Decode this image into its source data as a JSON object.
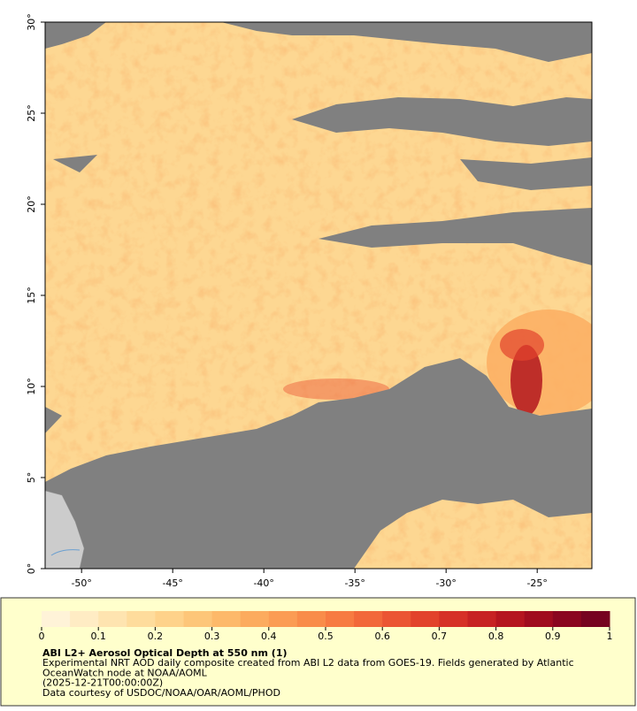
{
  "map": {
    "xlim": [
      -52,
      -22
    ],
    "ylim": [
      0,
      30
    ],
    "xticks": [
      {
        "value": -50,
        "label": "-50°"
      },
      {
        "value": -45,
        "label": "-45°"
      },
      {
        "value": -40,
        "label": "-40°"
      },
      {
        "value": -35,
        "label": "-35°"
      },
      {
        "value": -30,
        "label": "-30°"
      },
      {
        "value": -25,
        "label": "-25°"
      }
    ],
    "yticks": [
      {
        "value": 0,
        "label": "0°"
      },
      {
        "value": 5,
        "label": "5°"
      },
      {
        "value": 10,
        "label": "10°"
      },
      {
        "value": 15,
        "label": "15°"
      },
      {
        "value": 20,
        "label": "20°"
      },
      {
        "value": 25,
        "label": "25°"
      },
      {
        "value": 30,
        "label": "30°"
      }
    ]
  },
  "colorbar": {
    "lim": [
      0,
      1
    ],
    "ticks": [
      0,
      0.1,
      0.2,
      0.3,
      0.4,
      0.5,
      0.6,
      0.7,
      0.8,
      0.9,
      1
    ],
    "colors": [
      "#fff3d8",
      "#ffecc4",
      "#fee4b0",
      "#fedc9c",
      "#fed28a",
      "#fdc679",
      "#fdb96a",
      "#fcab5e",
      "#fb9c54",
      "#f98c4a",
      "#f77b42",
      "#f2683a",
      "#eb5533",
      "#e2432c",
      "#d63127",
      "#c72223",
      "#b5151f",
      "#a00c1e",
      "#8a061f",
      "#760320"
    ]
  },
  "caption": {
    "title": "ABI L2+ Aerosol Optical Depth at 550 nm (1)",
    "lines": [
      "Experimental NRT AOD daily composite created from ABI L2 data from GOES-19. Fields generated by Atlantic",
      "OceanWatch node at NOAA/AOML",
      "(2025-12-21T00:00:00Z)",
      "Data courtesy of USDOC/NOAA/OAR/AOML/PHOD"
    ]
  }
}
